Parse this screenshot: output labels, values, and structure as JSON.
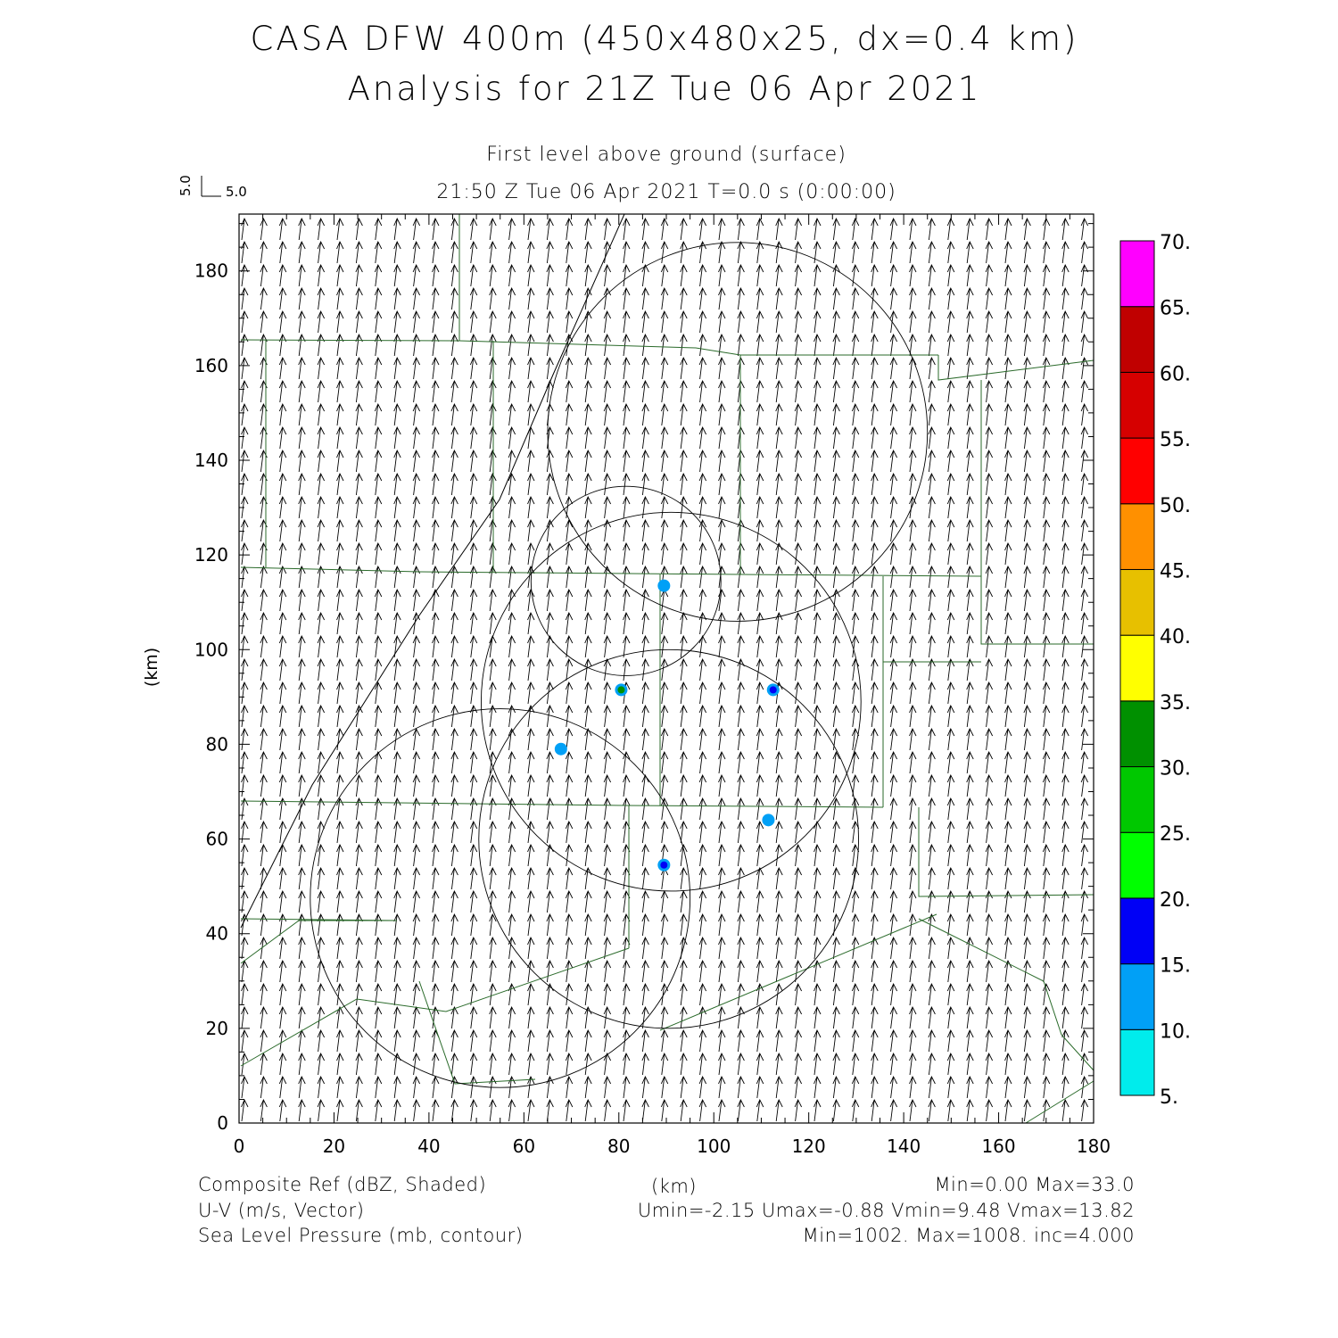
{
  "header": {
    "title_line1": "CASA DFW 400m (450x480x25, dx=0.4 km)",
    "title_line2": "Analysis for 21Z Tue 06 Apr 2021",
    "level": "First level above ground (surface)",
    "valid_time": "21:50 Z Tue 06 Apr 2021    T=0.0 s (0:00:00)"
  },
  "vector_key": {
    "u": "5.0",
    "v": "5.0"
  },
  "axes": {
    "x_label": "(km)",
    "y_label": "(km)",
    "x_ticks": [
      "0",
      "20",
      "40",
      "60",
      "80",
      "100",
      "120",
      "140",
      "160",
      "180"
    ],
    "y_ticks": [
      "0",
      "20",
      "40",
      "60",
      "80",
      "100",
      "120",
      "140",
      "160",
      "180"
    ],
    "x_range": [
      0,
      180
    ],
    "y_range": [
      0,
      192
    ]
  },
  "colorbar": {
    "labels": [
      "5.",
      "10.",
      "15.",
      "20.",
      "25.",
      "30.",
      "35.",
      "40.",
      "45.",
      "50.",
      "55.",
      "60.",
      "65.",
      "70."
    ],
    "colors": [
      "#00ecec",
      "#01a0f6",
      "#0000f6",
      "#00ff00",
      "#00c800",
      "#009000",
      "#ffff00",
      "#e7c000",
      "#ff9000",
      "#ff0000",
      "#d60000",
      "#c00000",
      "#ff00ff"
    ]
  },
  "footer": {
    "field1_name": "Composite Ref (dBZ, Shaded)",
    "field1_stats": "Min=0.00 Max=33.0",
    "field2_name": "U-V (m/s, Vector)",
    "field2_stats": "Umin=-2.15 Umax=-0.88 Vmin=9.48 Vmax=13.82",
    "field3_name": "Sea Level Pressure (mb, contour)",
    "field3_stats": "Min=1002. Max=1008. inc=4.000",
    "x_unit": "(km)"
  },
  "reflectivity_cells": [
    {
      "x_km": 80.5,
      "y_km": 91.5,
      "dbz": 33
    },
    {
      "x_km": 112.5,
      "y_km": 91.5,
      "dbz": 18
    },
    {
      "x_km": 67.8,
      "y_km": 79.0,
      "dbz": 12
    },
    {
      "x_km": 111.5,
      "y_km": 64.0,
      "dbz": 14
    },
    {
      "x_km": 89.5,
      "y_km": 54.5,
      "dbz": 16
    },
    {
      "x_km": 89.5,
      "y_km": 113.5,
      "dbz": 10
    }
  ],
  "radar_range_rings": [
    {
      "cx_km": 81.5,
      "cy_km": 114.5,
      "r_km": 20
    },
    {
      "cx_km": 105.0,
      "cy_km": 146.0,
      "r_km": 40
    },
    {
      "cx_km": 91.0,
      "cy_km": 89.0,
      "r_km": 40
    },
    {
      "cx_km": 55.0,
      "cy_km": 47.5,
      "r_km": 40
    },
    {
      "cx_km": 90.5,
      "cy_km": 60.0,
      "r_km": 40
    }
  ]
}
